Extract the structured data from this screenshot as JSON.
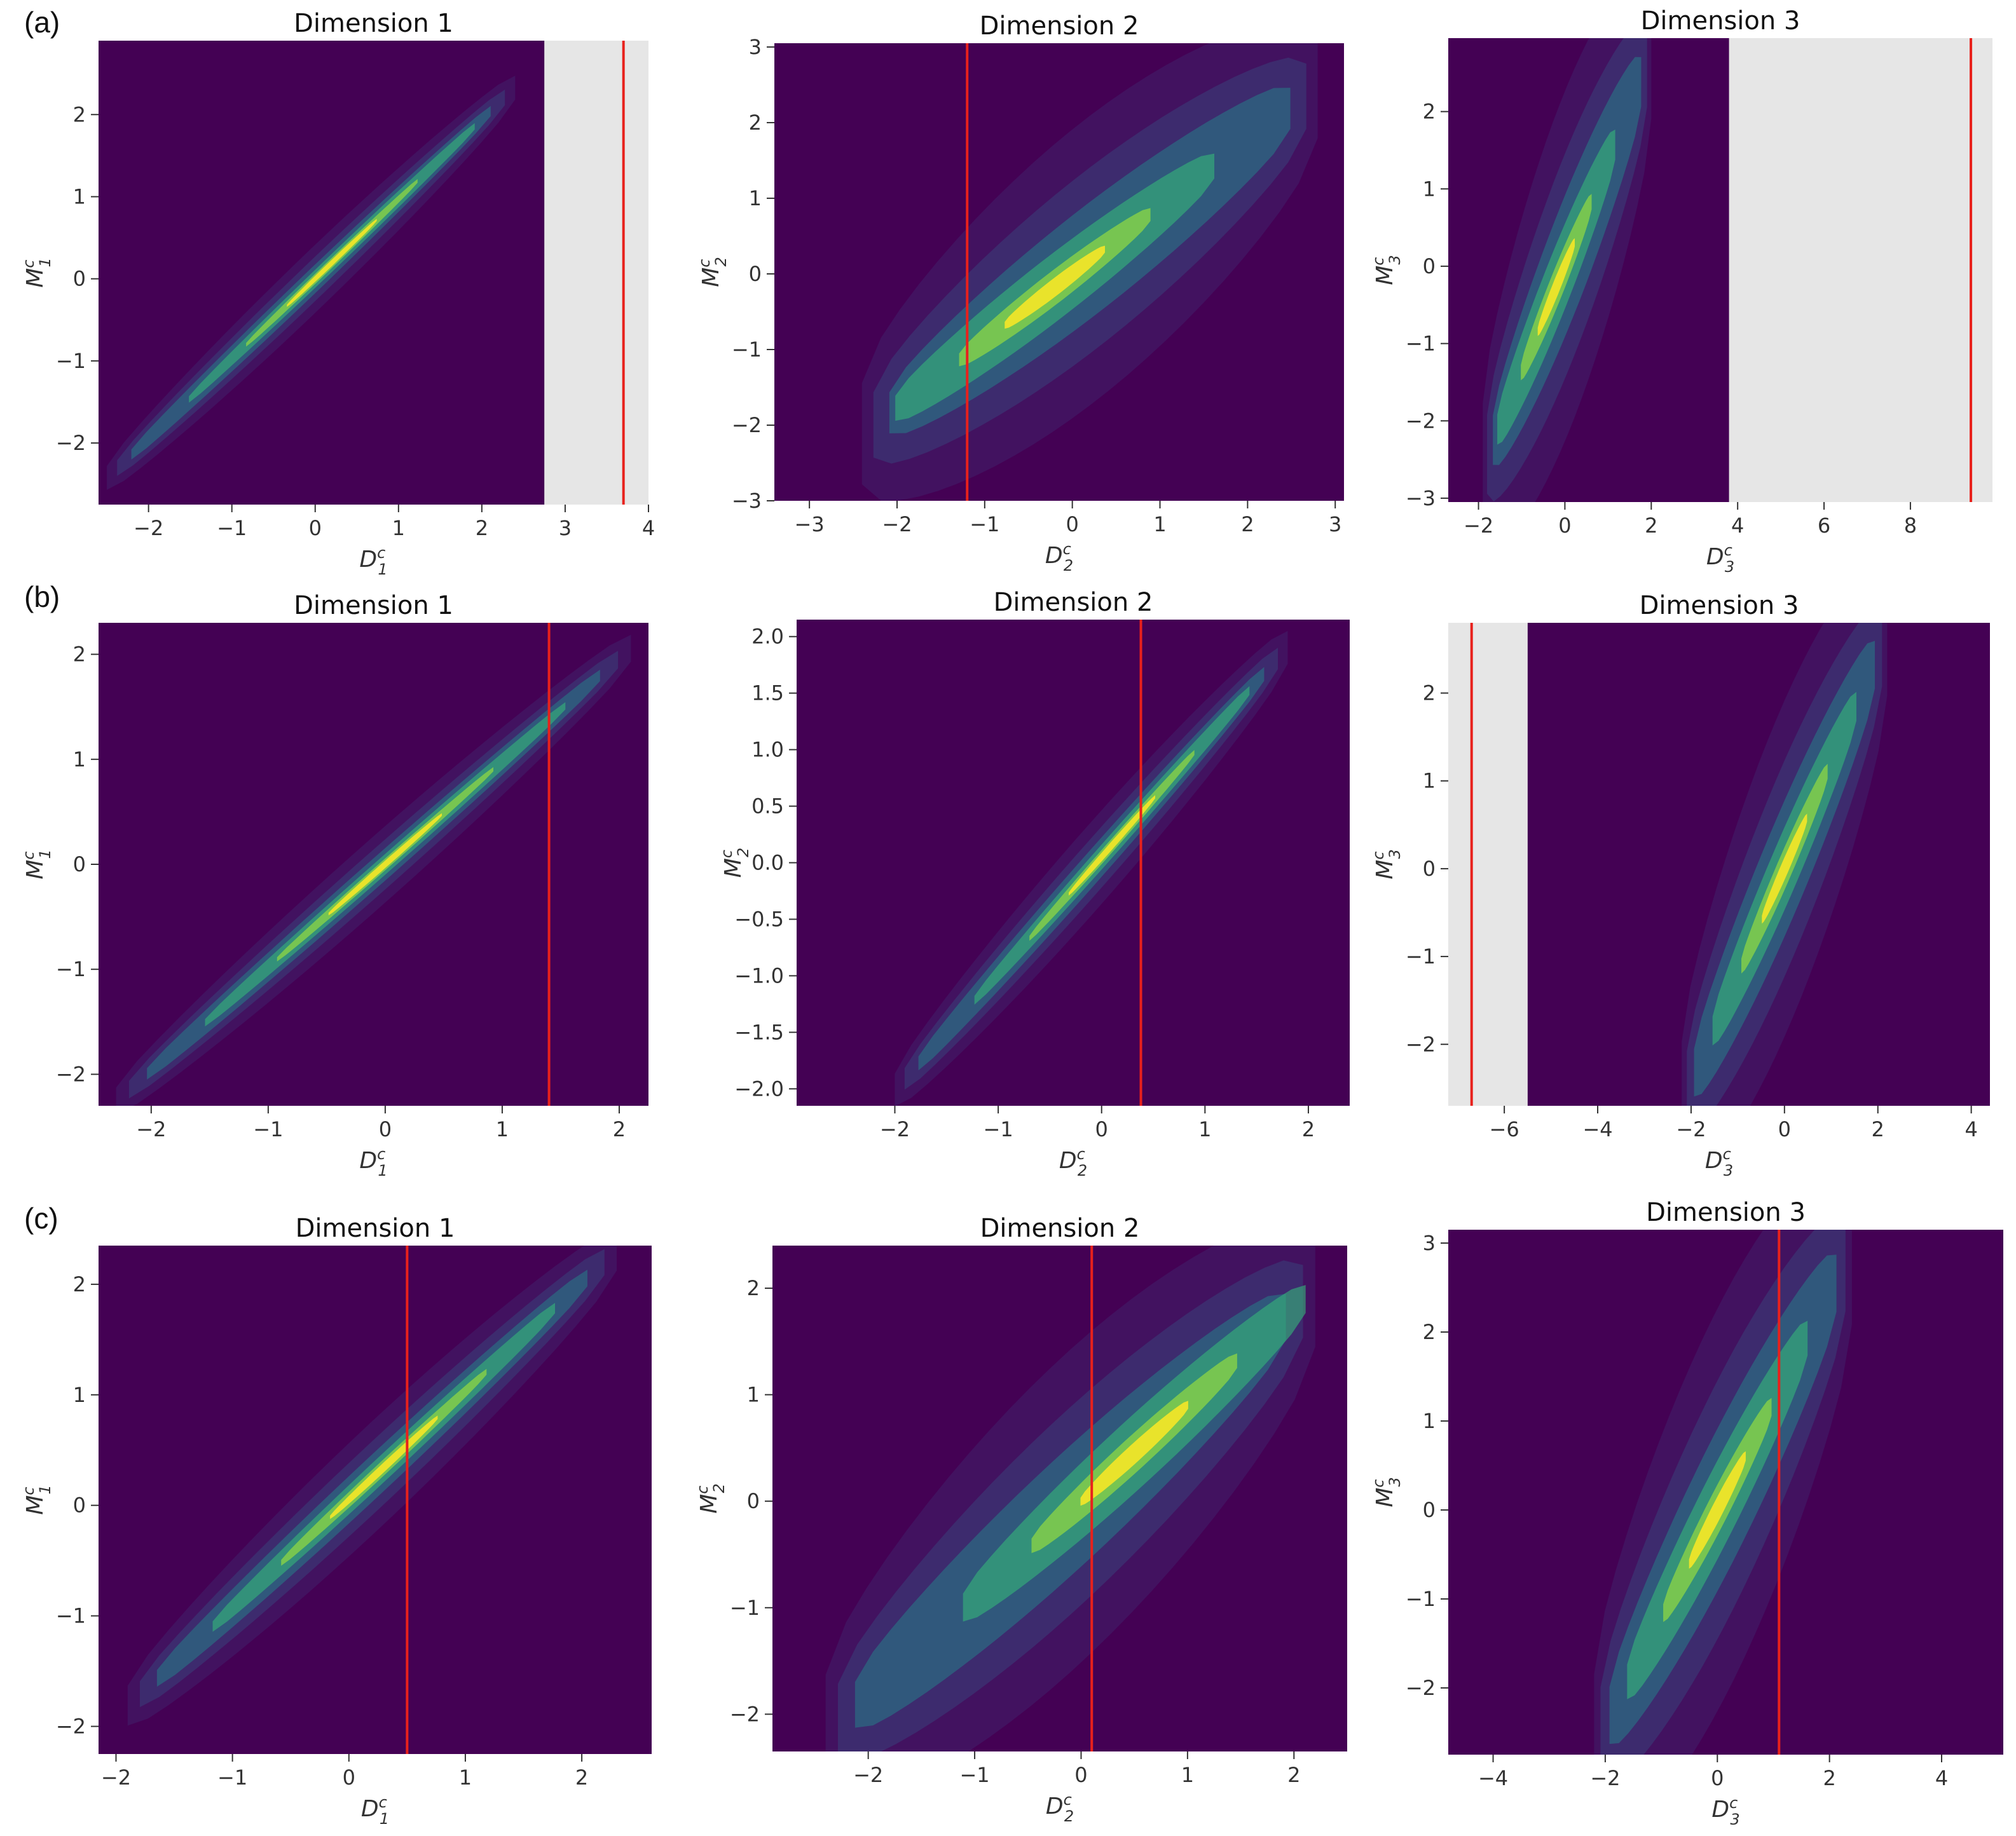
{
  "figure": {
    "rows": [
      {
        "label": "(a)"
      },
      {
        "label": "(b)"
      },
      {
        "label": "(c)"
      }
    ],
    "colors": {
      "background": "#440154",
      "density_colormap": "viridis",
      "marker_line": "#e8211c",
      "out_of_range_fill": "#e6e6e6"
    }
  },
  "chart_data": [
    {
      "row": "(a)",
      "type": "heatmap",
      "title": "Dimension 1",
      "xlabel": "D_1^c",
      "ylabel": "M_1^c",
      "xlim": [
        -2.6,
        4.0
      ],
      "ylim": [
        -2.75,
        2.9
      ],
      "xticks": [
        -2,
        -1,
        0,
        1,
        2,
        3,
        4
      ],
      "yticks": [
        -2,
        -1,
        0,
        1,
        2
      ],
      "density": {
        "x_range": [
          -2.5,
          2.4
        ],
        "y_range": [
          -2.4,
          2.3
        ],
        "slope": 0.97,
        "intercept": 0.0,
        "spread": 0.08,
        "peak": [
          0.2,
          0.2
        ]
      },
      "shaded_region": {
        "from_x": 2.75,
        "to_x": 4.0
      },
      "vline_x": 3.7
    },
    {
      "row": "(a)",
      "type": "heatmap",
      "title": "Dimension 2",
      "xlabel": "D_2^c",
      "ylabel": "M_2^c",
      "xlim": [
        -3.4,
        3.1
      ],
      "ylim": [
        -3.0,
        3.05
      ],
      "xticks": [
        -3,
        -2,
        -1,
        0,
        1,
        2,
        3
      ],
      "yticks": [
        -3,
        -2,
        -1,
        0,
        1,
        2,
        3
      ],
      "density": {
        "x_range": [
          -2.4,
          2.8
        ],
        "y_range": [
          -2.6,
          2.6
        ],
        "slope": 0.88,
        "intercept": 0.0,
        "spread": 0.38,
        "peak": [
          -0.2,
          -0.2
        ]
      },
      "vline_x": -1.2
    },
    {
      "row": "(a)",
      "type": "heatmap",
      "title": "Dimension 3",
      "xlabel": "D_3^c",
      "ylabel": "M_3^c",
      "xlim": [
        -2.7,
        9.9
      ],
      "ylim": [
        -3.05,
        2.95
      ],
      "xticks": [
        -2,
        0,
        2,
        4,
        6,
        8
      ],
      "yticks": [
        -3,
        -2,
        -1,
        0,
        1,
        2
      ],
      "density": {
        "x_range": [
          -1.9,
          2.0
        ],
        "y_range": [
          -2.3,
          2.2
        ],
        "slope": 1.35,
        "intercept": 0.0,
        "spread": 0.45,
        "peak": [
          -0.2,
          -0.3
        ]
      },
      "shaded_region": {
        "from_x": 3.8,
        "to_x": 9.9
      },
      "vline_x": 9.4
    },
    {
      "row": "(b)",
      "type": "heatmap",
      "title": "Dimension 1",
      "xlabel": "D_1^c",
      "ylabel": "M_1^c",
      "xlim": [
        -2.45,
        2.25
      ],
      "ylim": [
        -2.3,
        2.3
      ],
      "xticks": [
        -2,
        -1,
        0,
        1,
        2
      ],
      "yticks": [
        -2,
        -1,
        0,
        1,
        2
      ],
      "density": {
        "x_range": [
          -2.3,
          2.1
        ],
        "y_range": [
          -2.2,
          2.2
        ],
        "slope": 0.98,
        "intercept": 0.0,
        "spread": 0.07,
        "peak": [
          0.0,
          0.0
        ]
      },
      "vline_x": 1.4
    },
    {
      "row": "(b)",
      "type": "heatmap",
      "title": "Dimension 2",
      "xlabel": "D_2^c",
      "ylabel": "M_2^c",
      "xlim": [
        -2.95,
        2.4
      ],
      "ylim": [
        -2.15,
        2.15
      ],
      "xticks": [
        -2,
        -1,
        0,
        1,
        2
      ],
      "yticks": [
        -2.0,
        -1.5,
        -1.0,
        -0.5,
        0.0,
        0.5,
        1.0,
        1.5,
        2.0
      ],
      "density": {
        "x_range": [
          -2.0,
          1.8
        ],
        "y_range": [
          -2.0,
          2.0
        ],
        "slope": 1.03,
        "intercept": 0.05,
        "spread": 0.08,
        "peak": [
          0.1,
          0.1
        ]
      },
      "vline_x": 0.38
    },
    {
      "row": "(b)",
      "type": "heatmap",
      "title": "Dimension 3",
      "xlabel": "D_3^c",
      "ylabel": "M_3^c",
      "xlim": [
        -7.2,
        4.4
      ],
      "ylim": [
        -2.7,
        2.8
      ],
      "xticks": [
        -6,
        -4,
        -2,
        0,
        2,
        4
      ],
      "yticks": [
        -2,
        -1,
        0,
        1,
        2
      ],
      "density": {
        "x_range": [
          -2.2,
          2.2
        ],
        "y_range": [
          -2.2,
          2.4
        ],
        "slope": 1.2,
        "intercept": 0.0,
        "spread": 0.38,
        "peak": [
          0.0,
          0.0
        ]
      },
      "shaded_region": {
        "from_x": -7.2,
        "to_x": -5.5
      },
      "vline_x": -6.7
    },
    {
      "row": "(c)",
      "type": "heatmap",
      "title": "Dimension 1",
      "xlabel": "D_1^c",
      "ylabel": "M_1^c",
      "xlim": [
        -2.15,
        2.6
      ],
      "ylim": [
        -2.25,
        2.35
      ],
      "xticks": [
        -2,
        -1,
        0,
        1,
        2
      ],
      "yticks": [
        -2,
        -1,
        0,
        1,
        2
      ],
      "density": {
        "x_range": [
          -1.9,
          2.3
        ],
        "y_range": [
          -2.0,
          2.1
        ],
        "slope": 0.98,
        "intercept": 0.05,
        "spread": 0.1,
        "peak": [
          0.3,
          0.4
        ]
      },
      "vline_x": 0.5
    },
    {
      "row": "(c)",
      "type": "heatmap",
      "title": "Dimension 2",
      "xlabel": "D_2^c",
      "ylabel": "M_2^c",
      "xlim": [
        -2.9,
        2.5
      ],
      "ylim": [
        -2.35,
        2.4
      ],
      "xticks": [
        -2,
        -1,
        0,
        1,
        2
      ],
      "yticks": [
        -2,
        -1,
        0,
        1,
        2
      ],
      "density": {
        "x_range": [
          -2.4,
          2.2
        ],
        "y_range": [
          -2.2,
          2.2
        ],
        "slope": 0.9,
        "intercept": 0.0,
        "spread": 0.3,
        "peak": [
          0.5,
          0.4
        ]
      },
      "vline_x": 0.1
    },
    {
      "row": "(c)",
      "type": "heatmap",
      "title": "Dimension 3",
      "xlabel": "D_3^c",
      "ylabel": "M_3^c",
      "xlim": [
        -4.8,
        5.1
      ],
      "ylim": [
        -2.75,
        3.15
      ],
      "xticks": [
        -4,
        -2,
        0,
        2,
        4
      ],
      "yticks": [
        -2,
        -1,
        0,
        1,
        2,
        3
      ],
      "density": {
        "x_range": [
          -2.2,
          2.4
        ],
        "y_range": [
          -2.4,
          2.6
        ],
        "slope": 1.2,
        "intercept": 0.0,
        "spread": 0.45,
        "peak": [
          0.0,
          0.2
        ]
      },
      "vline_x": 1.1
    }
  ]
}
